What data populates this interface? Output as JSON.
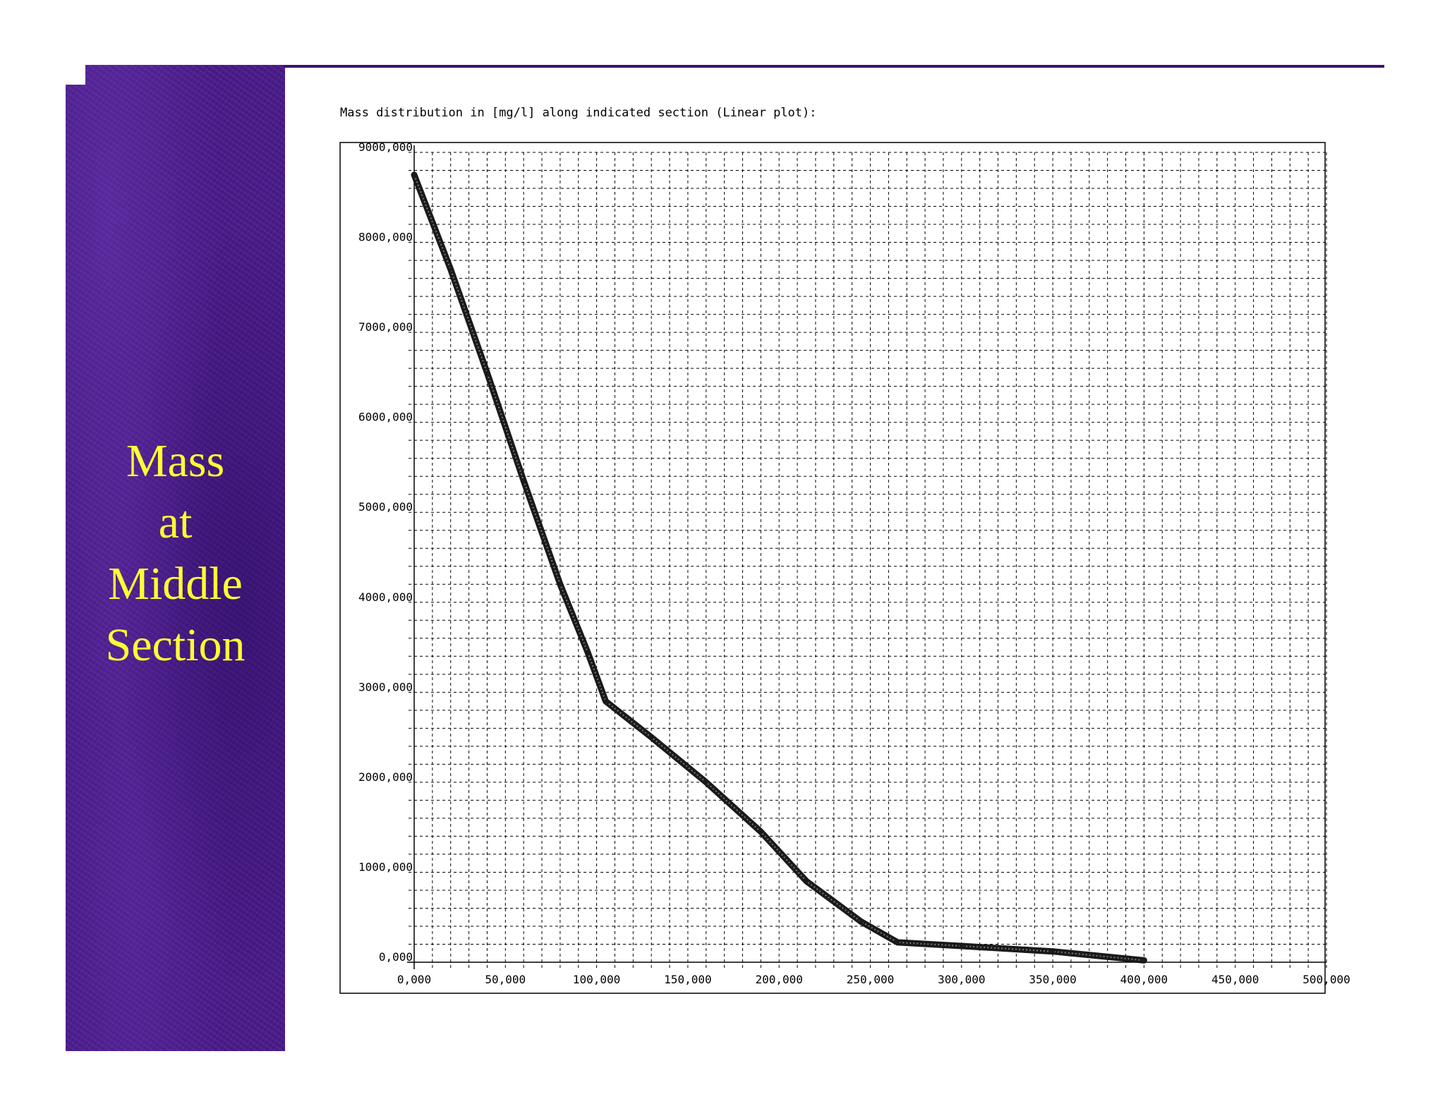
{
  "slide": {
    "title_lines": [
      "Mass",
      "at",
      "Middle",
      "Section"
    ],
    "accent_color": "#4a1a8c",
    "title_color": "#ffff33"
  },
  "chart_data": {
    "type": "line",
    "title": "Mass distribution in [mg/l] along indicated section (Linear plot):",
    "xlabel": "",
    "ylabel": "",
    "xlim": [
      0,
      500
    ],
    "ylim": [
      0,
      9000
    ],
    "x_tick_labels": [
      "0,000",
      "50,000",
      "100,000",
      "150,000",
      "200,000",
      "250,000",
      "300,000",
      "350,000",
      "400,000",
      "450,000",
      "500,000"
    ],
    "y_tick_labels": [
      "0,000",
      "1000,000",
      "2000,000",
      "3000,000",
      "4000,000",
      "5000,000",
      "6000,000",
      "7000,000",
      "8000,000",
      "9000,000"
    ],
    "grid": true,
    "series": [
      {
        "x": [
          0,
          20,
          40,
          60,
          80,
          95,
          105,
          130,
          160,
          190,
          215,
          245,
          265,
          300,
          350,
          400
        ],
        "y": [
          8750,
          7700,
          6550,
          5350,
          4200,
          3450,
          2900,
          2500,
          2000,
          1450,
          900,
          450,
          220,
          180,
          120,
          20
        ]
      }
    ]
  }
}
